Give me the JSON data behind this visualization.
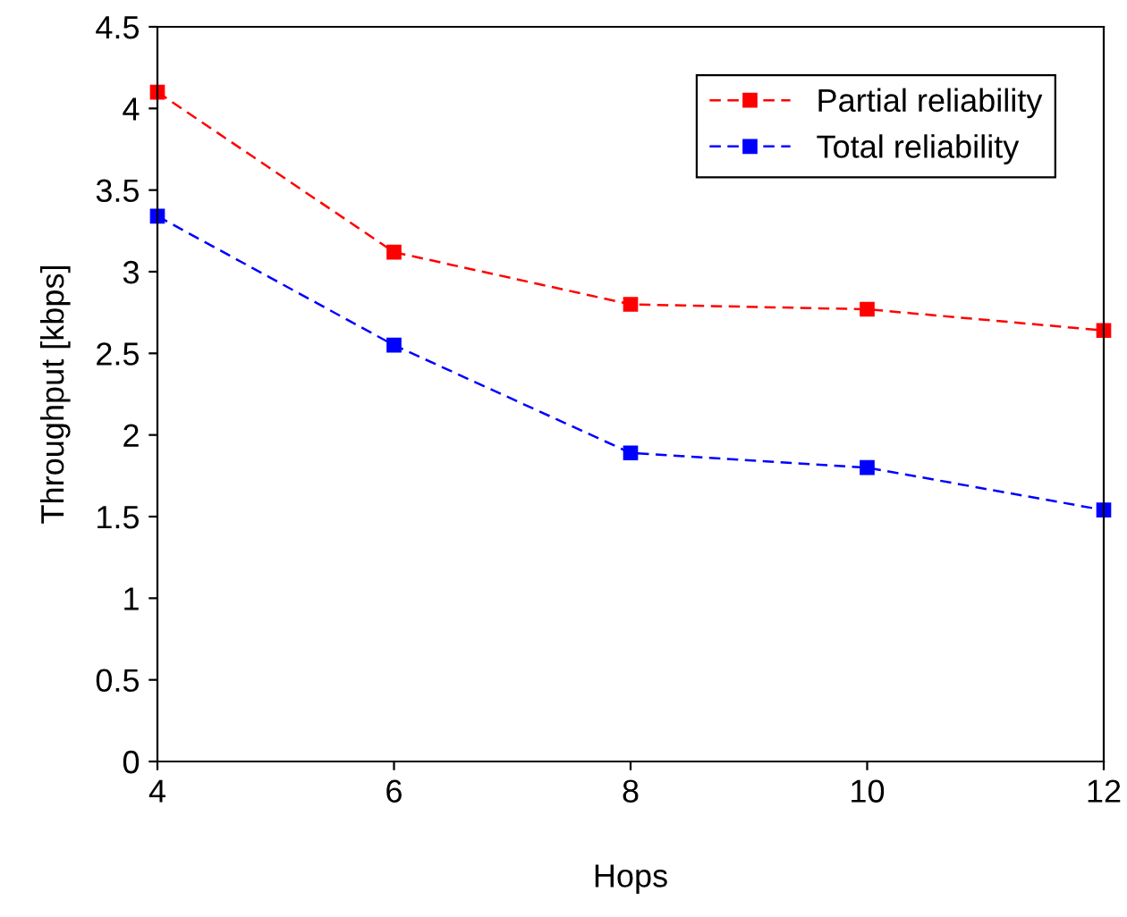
{
  "chart_data": {
    "type": "line",
    "xlabel": "Hops",
    "ylabel": "Throughput [kbps]",
    "x": [
      4,
      6,
      8,
      10,
      12
    ],
    "series": [
      {
        "name": "Partial reliability",
        "color": "#ff0000",
        "values": [
          4.1,
          3.12,
          2.8,
          2.77,
          2.64
        ]
      },
      {
        "name": "Total reliability",
        "color": "#0000ff",
        "values": [
          3.34,
          2.55,
          1.89,
          1.8,
          1.54
        ]
      }
    ],
    "xlim": [
      4,
      12
    ],
    "xticks": [
      4,
      6,
      8,
      10,
      12
    ],
    "ylim": [
      0,
      4.5
    ],
    "yticks": [
      0,
      0.5,
      1,
      1.5,
      2,
      2.5,
      3,
      3.5,
      4,
      4.5
    ],
    "grid": false,
    "legend": "top right",
    "marker": "square",
    "line_style": "dashed"
  }
}
